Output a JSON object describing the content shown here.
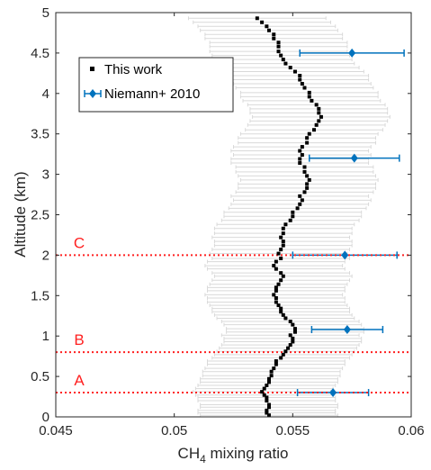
{
  "chart_data": {
    "type": "scatter",
    "xlabel_main": "CH",
    "xlabel_sub": "4",
    "xlabel_rest": " mixing ratio",
    "ylabel": "Altitude (km)",
    "xlim": [
      0.045,
      0.06
    ],
    "ylim": [
      0,
      5
    ],
    "xticks": [
      0.045,
      0.05,
      0.055,
      0.06
    ],
    "xtick_labels": [
      "0.045",
      "0.05",
      "0.055",
      "0.06"
    ],
    "yticks": [
      0,
      0.5,
      1,
      1.5,
      2,
      2.5,
      3,
      3.5,
      4,
      4.5,
      5
    ],
    "ytick_labels": [
      "0",
      "0.5",
      "1",
      "1.5",
      "2",
      "2.5",
      "3",
      "3.5",
      "4",
      "4.5",
      "5"
    ],
    "grid": false,
    "legend_placement": "top-left",
    "colors": {
      "this_work": "#000000",
      "niemann": "#0072BD",
      "this_work_errorbar": "#d9d9d9",
      "reference_lines": "#ff2020"
    },
    "series": [
      {
        "name": "This work",
        "marker": "square",
        "x": [
          0.054,
          0.0539,
          0.0539,
          0.054,
          0.054,
          0.0539,
          0.0539,
          0.0538,
          0.0537,
          0.0538,
          0.0539,
          0.054,
          0.054,
          0.0541,
          0.0541,
          0.0542,
          0.0543,
          0.0543,
          0.0545,
          0.0546,
          0.0547,
          0.0548,
          0.0549,
          0.055,
          0.055,
          0.0549,
          0.0551,
          0.0551,
          0.055,
          0.0549,
          0.0547,
          0.0546,
          0.0545,
          0.0545,
          0.0544,
          0.0543,
          0.0543,
          0.0542,
          0.0543,
          0.0543,
          0.0544,
          0.0545,
          0.0546,
          0.0545,
          0.0543,
          0.0542,
          0.0543,
          0.0545,
          0.0544,
          0.0545,
          0.0546,
          0.0546,
          0.0545,
          0.0546,
          0.0546,
          0.0547,
          0.0549,
          0.055,
          0.055,
          0.0552,
          0.0553,
          0.0554,
          0.0553,
          0.0555,
          0.0556,
          0.0556,
          0.0557,
          0.0556,
          0.0555,
          0.0555,
          0.0553,
          0.0553,
          0.0554,
          0.0553,
          0.0554,
          0.0556,
          0.0556,
          0.0557,
          0.0559,
          0.056,
          0.0561,
          0.0562,
          0.0561,
          0.0561,
          0.056,
          0.0558,
          0.0557,
          0.0557,
          0.0555,
          0.0554,
          0.0553,
          0.0553,
          0.0551,
          0.0549,
          0.0547,
          0.0546,
          0.0545,
          0.0544,
          0.0544,
          0.0544,
          0.0542,
          0.0542,
          0.054,
          0.0539,
          0.0537,
          0.0535
        ],
        "y": [
          0.02,
          0.05,
          0.08,
          0.12,
          0.15,
          0.2,
          0.24,
          0.27,
          0.31,
          0.35,
          0.39,
          0.43,
          0.47,
          0.51,
          0.56,
          0.6,
          0.65,
          0.69,
          0.73,
          0.77,
          0.81,
          0.85,
          0.89,
          0.93,
          0.97,
          1.01,
          1.05,
          1.09,
          1.14,
          1.18,
          1.22,
          1.26,
          1.3,
          1.34,
          1.38,
          1.42,
          1.47,
          1.51,
          1.56,
          1.6,
          1.64,
          1.69,
          1.74,
          1.78,
          1.83,
          1.87,
          1.92,
          1.96,
          2.02,
          2.07,
          2.12,
          2.17,
          2.22,
          2.27,
          2.33,
          2.38,
          2.43,
          2.48,
          2.53,
          2.58,
          2.63,
          2.68,
          2.73,
          2.78,
          2.83,
          2.88,
          2.93,
          2.98,
          3.03,
          3.09,
          3.14,
          3.19,
          3.24,
          3.29,
          3.34,
          3.39,
          3.45,
          3.5,
          3.55,
          3.61,
          3.66,
          3.71,
          3.76,
          3.81,
          3.86,
          3.91,
          3.96,
          4.01,
          4.07,
          4.12,
          4.17,
          4.22,
          4.27,
          4.32,
          4.37,
          4.42,
          4.47,
          4.52,
          4.58,
          4.63,
          4.68,
          4.73,
          4.78,
          4.83,
          4.88,
          4.93
        ],
        "xerr": 0.0029
      },
      {
        "name": "Niemann+ 2010",
        "marker": "diamond",
        "x": [
          0.0567,
          0.0573,
          0.0572,
          0.0576,
          0.0575
        ],
        "y": [
          0.3,
          1.08,
          2.0,
          3.2,
          4.5
        ],
        "xerr": [
          0.0015,
          0.0015,
          0.0022,
          0.0019,
          0.0022
        ]
      }
    ],
    "reference_lines": [
      {
        "label": "A",
        "y": 0.3
      },
      {
        "label": "B",
        "y": 0.8
      },
      {
        "label": "C",
        "y": 2.0
      }
    ]
  }
}
